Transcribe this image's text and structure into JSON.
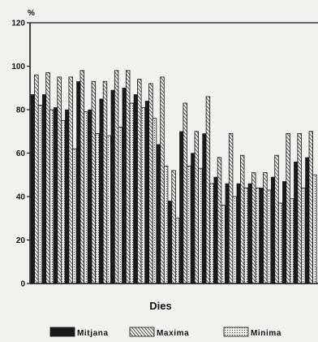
{
  "chart_data": {
    "type": "bar",
    "title": "",
    "unit": "%",
    "xlabel": "Dies",
    "ylabel": "",
    "ylim": [
      0,
      120
    ],
    "yticks": [
      "0",
      "20",
      "40",
      "60",
      "80",
      "100",
      "120"
    ],
    "grid": false,
    "legend_position": "bottom",
    "series": [
      {
        "name": "Mitjana",
        "pattern": "solid",
        "values": [
          87,
          87,
          81,
          80,
          93,
          80,
          85,
          89,
          90,
          87,
          84,
          64,
          38,
          70,
          60,
          69,
          49,
          46,
          46,
          46,
          44,
          49,
          47,
          56,
          58
        ]
      },
      {
        "name": "Maxima",
        "pattern": "diagonal",
        "values": [
          96,
          97,
          95,
          95,
          98,
          93,
          93,
          98,
          98,
          94,
          92,
          95,
          52,
          83,
          70,
          86,
          58,
          69,
          59,
          51,
          51,
          59,
          69,
          69,
          70
        ]
      },
      {
        "name": "Minima",
        "pattern": "dotted",
        "values": [
          82,
          80,
          75,
          62,
          79,
          69,
          68,
          72,
          83,
          81,
          76,
          54,
          30,
          54,
          53,
          46,
          36,
          40,
          44,
          44,
          43,
          37,
          39,
          44,
          50
        ]
      }
    ]
  }
}
